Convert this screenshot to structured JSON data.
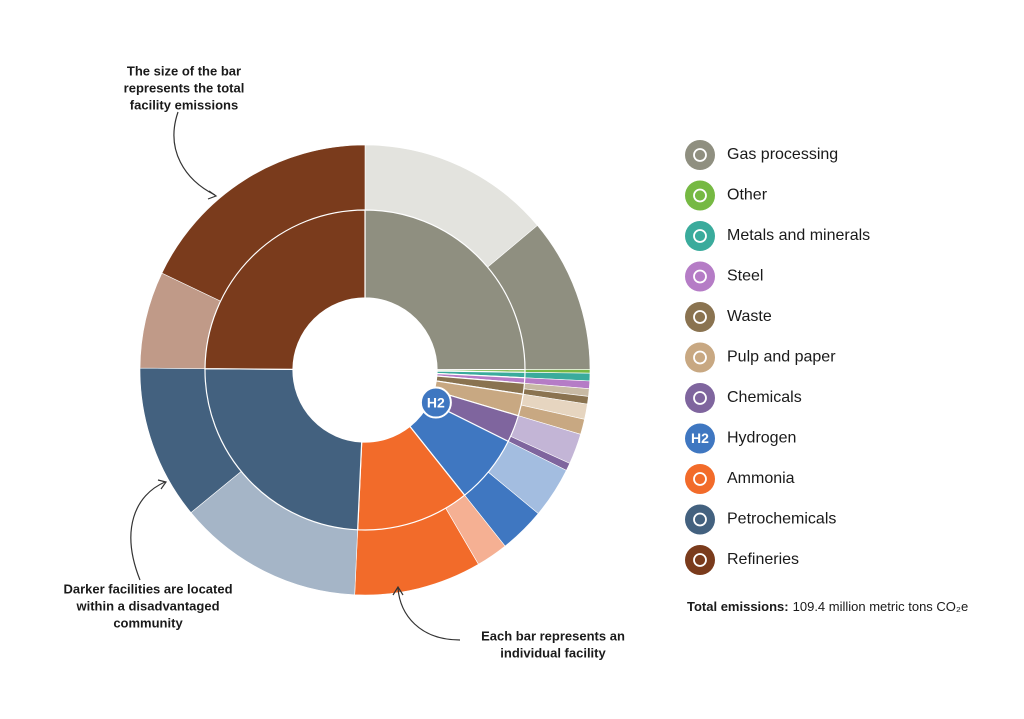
{
  "chart_data": {
    "type": "sunburst",
    "series": [
      {
        "name": "Gas processing",
        "color": "#8f8f80",
        "light_color": "#e3e3de",
        "values": [
          15.2,
          12.1
        ]
      },
      {
        "name": "Other",
        "color": "#76b943",
        "light_color": "#b9dc9f",
        "values": [
          0,
          0.3
        ]
      },
      {
        "name": "Metals and minerals",
        "color": "#3aab9c",
        "light_color": "#9fd8cf",
        "values": [
          0,
          0.6
        ]
      },
      {
        "name": "Steel",
        "color": "#b57cc6",
        "light_color": "#dcbfe5",
        "values": [
          0,
          0.6
        ]
      },
      {
        "name": "Waste",
        "color": "#8a7350",
        "light_color": "#c8baa4",
        "values": [
          0.6,
          0.6
        ]
      },
      {
        "name": "Pulp and paper",
        "color": "#c8a882",
        "light_color": "#e6d5c0",
        "values": [
          1.2,
          1.2
        ]
      },
      {
        "name": "Chemicals",
        "color": "#7f659e",
        "light_color": "#c3b5d6",
        "values": [
          2.4,
          0.6
        ]
      },
      {
        "name": "Hydrogen",
        "color": "#3f77c1",
        "light_color": "#a3bde0",
        "values": [
          4.0,
          3.6
        ],
        "icon_label": "H2"
      },
      {
        "name": "Ammonia",
        "color": "#f26b2a",
        "light_color": "#f5b093",
        "values": [
          2.5,
          10.0
        ]
      },
      {
        "name": "Petrochemicals",
        "color": "#43617f",
        "light_color": "#a5b5c7",
        "values": [
          14.6,
          12.1
        ]
      },
      {
        "name": "Refineries",
        "color": "#7a3b1c",
        "light_color": "#c09a88",
        "values": [
          7.6,
          19.6
        ]
      }
    ],
    "annotations": [
      {
        "lines": [
          "The size of the bar",
          "represents the total",
          "facility emissions"
        ]
      },
      {
        "lines": [
          "Darker facilities are located",
          "within a disadvantaged",
          "community"
        ]
      },
      {
        "lines": [
          "Each bar represents an",
          "individual facility"
        ]
      }
    ],
    "total_label": "Total emissions:",
    "total_text": "109.4 million metric tons CO₂e"
  }
}
